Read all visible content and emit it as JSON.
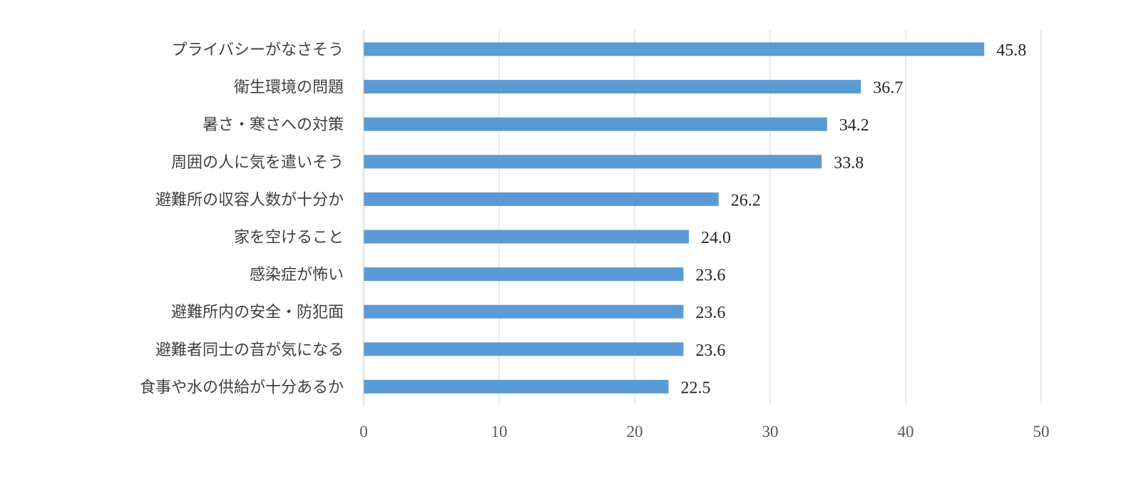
{
  "chart_data": {
    "type": "bar",
    "orientation": "horizontal",
    "title": "",
    "xlabel": "",
    "ylabel": "",
    "categories": [
      "プライバシーがなさそう",
      "衛生環境の問題",
      "暑さ・寒さへの対策",
      "周囲の人に気を遣いそう",
      "避難所の収容人数が十分か",
      "家を空けること",
      "感染症が怖い",
      "避難所内の安全・防犯面",
      "避難者同士の音が気になる",
      "食事や水の供給が十分あるか"
    ],
    "values": [
      45.8,
      36.7,
      34.2,
      33.8,
      26.2,
      24.0,
      23.6,
      23.6,
      23.6,
      22.5
    ],
    "value_labels": [
      "45.8",
      "36.7",
      "34.2",
      "33.8",
      "26.2",
      "24.0",
      "23.6",
      "23.6",
      "23.6",
      "22.5"
    ],
    "xlim": [
      0,
      50
    ],
    "xticks": [
      0,
      10,
      20,
      30,
      40,
      50
    ],
    "xtick_labels": [
      "0",
      "10",
      "20",
      "30",
      "40",
      "50"
    ],
    "grid": "vertical",
    "legend": "none",
    "bar_color": "#5b9bd5"
  }
}
